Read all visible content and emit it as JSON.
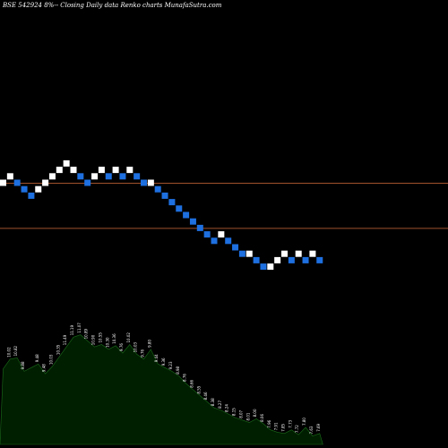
{
  "caption": "BSE 542924  8%-- Closing Daily data  Renko  charts MunafaSutra.com",
  "colors": {
    "background": "#000000",
    "up_brick": "#ffffff",
    "down_brick": "#1e6fe0",
    "level_line": "#a0522d",
    "volume_fill": "#001f00",
    "volume_stroke": "#1a6b1a"
  },
  "chart_data": {
    "type": "renko",
    "title": "BSE 542924  8%-- Closing Daily data  Renko  charts MunafaSutra.com",
    "bricks": [
      {
        "i": 0,
        "level": 8,
        "dir": "up"
      },
      {
        "i": 1,
        "level": 9,
        "dir": "up"
      },
      {
        "i": 2,
        "level": 8,
        "dir": "down"
      },
      {
        "i": 3,
        "level": 7,
        "dir": "down"
      },
      {
        "i": 4,
        "level": 6,
        "dir": "down"
      },
      {
        "i": 5,
        "level": 7,
        "dir": "up"
      },
      {
        "i": 6,
        "level": 8,
        "dir": "up"
      },
      {
        "i": 7,
        "level": 9,
        "dir": "up"
      },
      {
        "i": 8,
        "level": 10,
        "dir": "up"
      },
      {
        "i": 9,
        "level": 11,
        "dir": "up"
      },
      {
        "i": 10,
        "level": 10,
        "dir": "up"
      },
      {
        "i": 11,
        "level": 9,
        "dir": "down"
      },
      {
        "i": 12,
        "level": 8,
        "dir": "down"
      },
      {
        "i": 13,
        "level": 9,
        "dir": "up"
      },
      {
        "i": 14,
        "level": 10,
        "dir": "up"
      },
      {
        "i": 15,
        "level": 9,
        "dir": "down"
      },
      {
        "i": 16,
        "level": 10,
        "dir": "up"
      },
      {
        "i": 17,
        "level": 9,
        "dir": "down"
      },
      {
        "i": 18,
        "level": 10,
        "dir": "up"
      },
      {
        "i": 19,
        "level": 9,
        "dir": "down"
      },
      {
        "i": 20,
        "level": 8,
        "dir": "down"
      },
      {
        "i": 21,
        "level": 8,
        "dir": "up"
      },
      {
        "i": 22,
        "level": 7,
        "dir": "down"
      },
      {
        "i": 23,
        "level": 6,
        "dir": "down"
      },
      {
        "i": 24,
        "level": 5,
        "dir": "down"
      },
      {
        "i": 25,
        "level": 4,
        "dir": "down"
      },
      {
        "i": 26,
        "level": 3,
        "dir": "down"
      },
      {
        "i": 27,
        "level": 2,
        "dir": "down"
      },
      {
        "i": 28,
        "level": 1,
        "dir": "down"
      },
      {
        "i": 29,
        "level": 0,
        "dir": "down"
      },
      {
        "i": 30,
        "level": -1,
        "dir": "down"
      },
      {
        "i": 31,
        "level": 0,
        "dir": "up"
      },
      {
        "i": 32,
        "level": -1,
        "dir": "down"
      },
      {
        "i": 33,
        "level": -2,
        "dir": "down"
      },
      {
        "i": 34,
        "level": -3,
        "dir": "down"
      },
      {
        "i": 35,
        "level": -3,
        "dir": "up"
      },
      {
        "i": 36,
        "level": -4,
        "dir": "down"
      },
      {
        "i": 37,
        "level": -5,
        "dir": "down"
      },
      {
        "i": 38,
        "level": -5,
        "dir": "up"
      },
      {
        "i": 39,
        "level": -4,
        "dir": "up"
      },
      {
        "i": 40,
        "level": -3,
        "dir": "up"
      },
      {
        "i": 41,
        "level": -4,
        "dir": "down"
      },
      {
        "i": 42,
        "level": -3,
        "dir": "up"
      },
      {
        "i": 43,
        "level": -4,
        "dir": "down"
      },
      {
        "i": 44,
        "level": -3,
        "dir": "up"
      },
      {
        "i": 45,
        "level": -4,
        "dir": "down"
      }
    ],
    "reference_levels": [
      8,
      1
    ],
    "volume_levels": [
      62,
      70,
      71,
      60,
      63,
      66,
      58,
      64,
      72,
      80,
      88,
      90,
      85,
      80,
      82,
      78,
      81,
      75,
      82,
      74,
      70,
      78,
      66,
      63,
      60,
      56,
      50,
      45,
      40,
      35,
      30,
      28,
      25,
      22,
      20,
      18,
      21,
      17,
      12,
      10,
      9,
      12,
      8,
      14,
      7,
      9
    ],
    "volume_labels": [
      "",
      "10.02",
      "10.82",
      "9.88",
      "",
      "9.48",
      "9.48",
      "10.03",
      "10.35",
      "11.49",
      "11.19",
      "11.07",
      "10.89",
      "10.90",
      "10.55",
      "10.30",
      "10.36",
      "9.76",
      "10.02",
      "10.03",
      "9.76",
      "9.80",
      "9.44",
      "9.36",
      "9.23",
      "8.98",
      "8.76",
      "8.66",
      "8.55",
      "8.46",
      "8.38",
      "8.27",
      "8.24",
      "8.15",
      "8.07",
      "8.01",
      "8.00",
      "8.06",
      "7.96",
      "7.91",
      "7.85",
      "7.73",
      "7.72",
      "7.80",
      "7.63",
      "7.69"
    ]
  }
}
